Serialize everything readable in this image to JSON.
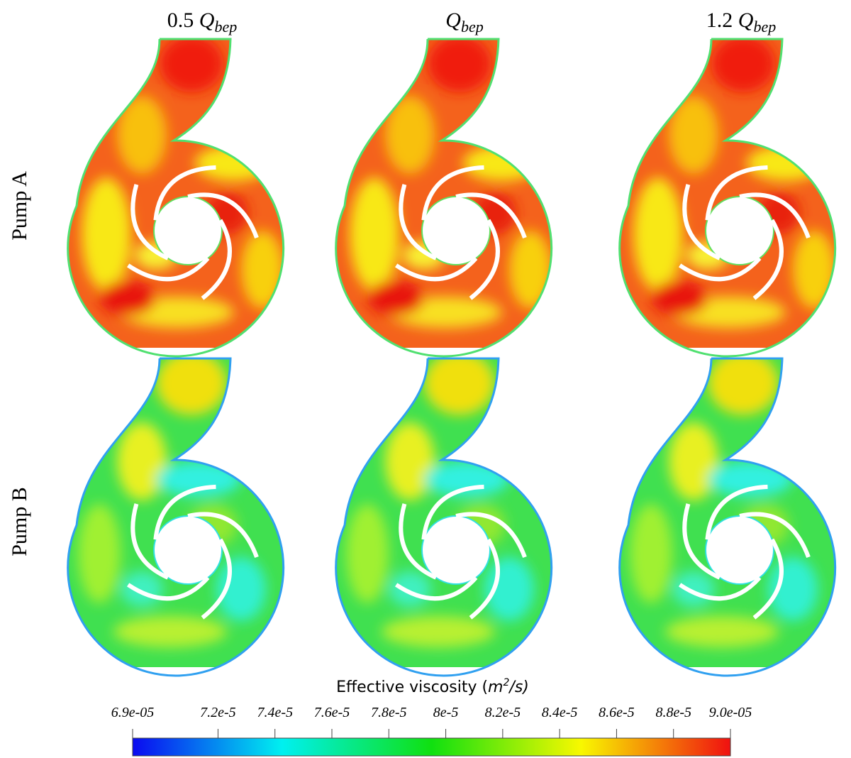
{
  "columns": [
    {
      "coef": "0.5",
      "symbol": "Q",
      "subscript": "bep"
    },
    {
      "coef": "",
      "symbol": "Q",
      "subscript": "bep"
    },
    {
      "coef": "1.2",
      "symbol": "Q",
      "subscript": "bep"
    }
  ],
  "rows": [
    "Pump A",
    "Pump B"
  ],
  "colorbar": {
    "title": [
      "Effective viscosity (",
      "m",
      "2",
      "/s)"
    ],
    "lim": [
      6.9e-05,
      9e-05
    ],
    "ticks": [
      {
        "value": 6.9e-05,
        "label": "6.9e-05"
      },
      {
        "value": 7.2e-05,
        "label": "7.2e-5"
      },
      {
        "value": 7.4e-05,
        "label": "7.4e-5"
      },
      {
        "value": 7.6e-05,
        "label": "7.6e-5"
      },
      {
        "value": 7.8e-05,
        "label": "7.8e-5"
      },
      {
        "value": 8e-05,
        "label": "8e-5"
      },
      {
        "value": 8.2e-05,
        "label": "8.2e-5"
      },
      {
        "value": 8.4e-05,
        "label": "8.4e-5"
      },
      {
        "value": 8.6e-05,
        "label": "8.6e-5"
      },
      {
        "value": 8.8e-05,
        "label": "8.8e-5"
      },
      {
        "value": 9e-05,
        "label": "9.0e-05"
      }
    ]
  }
}
